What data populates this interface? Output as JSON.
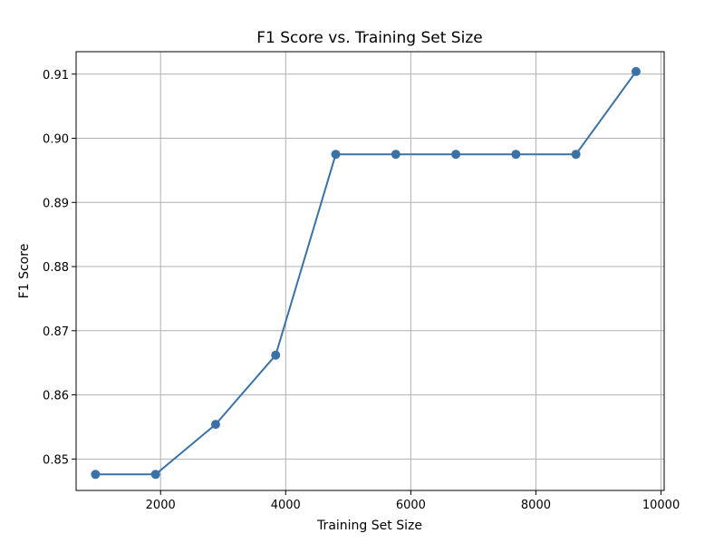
{
  "chart_data": {
    "type": "line",
    "title": "F1 Score vs. Training Set Size",
    "xlabel": "Training Set Size",
    "ylabel": "F1 Score",
    "xlim": [
      650,
      10050
    ],
    "ylim": [
      0.8451,
      0.9135
    ],
    "xticks": [
      2000,
      4000,
      6000,
      8000,
      10000
    ],
    "yticks": [
      0.85,
      0.86,
      0.87,
      0.88,
      0.89,
      0.9,
      0.91
    ],
    "xtick_labels": [
      "2000",
      "4000",
      "6000",
      "8000",
      "10000"
    ],
    "ytick_labels": [
      "0.85",
      "0.86",
      "0.87",
      "0.88",
      "0.89",
      "0.90",
      "0.91"
    ],
    "grid": true,
    "series": [
      {
        "color": "#3a72a8",
        "x": [
          960,
          1920,
          2880,
          3840,
          4800,
          5760,
          6720,
          7680,
          8640,
          9600
        ],
        "y": [
          0.8476,
          0.8476,
          0.8554,
          0.8662,
          0.8975,
          0.8975,
          0.8975,
          0.8975,
          0.8975,
          0.9104
        ]
      }
    ]
  }
}
